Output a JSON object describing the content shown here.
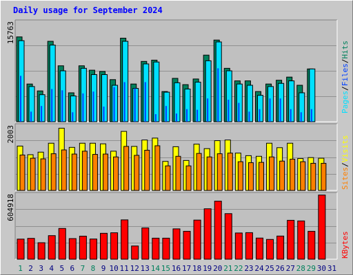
{
  "title": "Daily usage for September 2024",
  "colors": {
    "background": "#c8c8c8",
    "panel": "#c0c0c0",
    "hits": "#00805c",
    "files": "#0040ff",
    "pages": "#00e0ff",
    "visits": "#ffff00",
    "sites": "#ff8000",
    "kbytes": "#ff0000",
    "weekend": "#00805c",
    "weekday": "#000080",
    "title": "#0000ff",
    "slash": "#000000"
  },
  "chart_data": [
    {
      "type": "bar",
      "name": "hits-files-pages",
      "categories": [
        "1",
        "2",
        "3",
        "4",
        "5",
        "6",
        "7",
        "8",
        "9",
        "10",
        "11",
        "12",
        "13",
        "14",
        "15",
        "16",
        "17",
        "18",
        "19",
        "20",
        "21",
        "22",
        "23",
        "24",
        "25",
        "26",
        "27",
        "28",
        "29",
        "30",
        "31"
      ],
      "weekend_days": [
        1,
        7,
        8,
        14,
        15,
        21,
        22,
        28,
        29
      ],
      "ymax_label": "15763",
      "ylim": [
        0,
        15763
      ],
      "legend": {
        "hits": "Hits",
        "files": "Files",
        "pages": "Pages",
        "sep": "/"
      },
      "series": [
        {
          "name": "Hits",
          "values": [
            13500,
            6000,
            4900,
            12800,
            8900,
            4600,
            8900,
            8200,
            8000,
            6700,
            13300,
            6000,
            9600,
            9800,
            4800,
            6900,
            5900,
            6800,
            10600,
            13000,
            8500,
            6500,
            6500,
            4800,
            6000,
            6600,
            7100,
            5800,
            8400,
            0,
            0
          ]
        },
        {
          "name": "Files",
          "values": [
            7300,
            1600,
            2500,
            5200,
            5000,
            1500,
            4500,
            4800,
            2400,
            5500,
            6300,
            5300,
            6300,
            1200,
            2500,
            1300,
            2000,
            1900,
            3700,
            8500,
            3500,
            3000,
            1600,
            2000,
            3700,
            3700,
            2000,
            1500,
            2000,
            0,
            0
          ]
        },
        {
          "name": "Pages",
          "values": [
            12900,
            5600,
            4300,
            12200,
            8100,
            4100,
            8500,
            7500,
            7500,
            5800,
            12800,
            5300,
            9200,
            9500,
            4700,
            6200,
            5200,
            6300,
            9700,
            12700,
            8100,
            6000,
            5800,
            4200,
            5600,
            6100,
            6500,
            4600,
            8400,
            0,
            0
          ]
        }
      ]
    },
    {
      "type": "bar",
      "name": "visits-sites",
      "categories": [
        "1",
        "2",
        "3",
        "4",
        "5",
        "6",
        "7",
        "8",
        "9",
        "10",
        "11",
        "12",
        "13",
        "14",
        "15",
        "16",
        "17",
        "18",
        "19",
        "20",
        "21",
        "22",
        "23",
        "24",
        "25",
        "26",
        "27",
        "28",
        "29",
        "30",
        "31"
      ],
      "ymax_label": "2003",
      "ylim": [
        0,
        2003
      ],
      "legend": {
        "visits": "Visits",
        "sites": "Sites",
        "sep": "/"
      },
      "series": [
        {
          "name": "Visits",
          "values": [
            1390,
            1120,
            1200,
            1480,
            1950,
            1350,
            1480,
            1480,
            1460,
            1230,
            1850,
            1380,
            1580,
            1640,
            910,
            1370,
            940,
            1450,
            1310,
            1560,
            1580,
            1170,
            1090,
            1070,
            1480,
            1340,
            1480,
            1000,
            1030,
            1010,
            0
          ]
        },
        {
          "name": "Sites",
          "values": [
            1110,
            1010,
            990,
            1150,
            1270,
            1140,
            1230,
            1130,
            1140,
            1050,
            1380,
            1100,
            1260,
            1400,
            770,
            1070,
            770,
            1160,
            1050,
            1150,
            1170,
            900,
            870,
            880,
            1050,
            920,
            980,
            900,
            850,
            850,
            0
          ]
        }
      ]
    },
    {
      "type": "bar",
      "name": "kbytes",
      "categories": [
        "1",
        "2",
        "3",
        "4",
        "5",
        "6",
        "7",
        "8",
        "9",
        "10",
        "11",
        "12",
        "13",
        "14",
        "15",
        "16",
        "17",
        "18",
        "19",
        "20",
        "21",
        "22",
        "23",
        "24",
        "25",
        "26",
        "27",
        "28",
        "29",
        "30",
        "31"
      ],
      "ymax_label": "604918",
      "ylim": [
        0,
        604918
      ],
      "legend": {
        "kbytes": "KBytes"
      },
      "series": [
        {
          "name": "KBytes",
          "values": [
            190000,
            197000,
            156000,
            223000,
            291000,
            195000,
            218000,
            191000,
            245000,
            250000,
            372000,
            125000,
            296000,
            199000,
            199000,
            287000,
            264000,
            370000,
            477000,
            549000,
            431000,
            248000,
            251000,
            200000,
            187000,
            219000,
            368000,
            362000,
            264000,
            607000,
            0
          ]
        }
      ]
    }
  ]
}
